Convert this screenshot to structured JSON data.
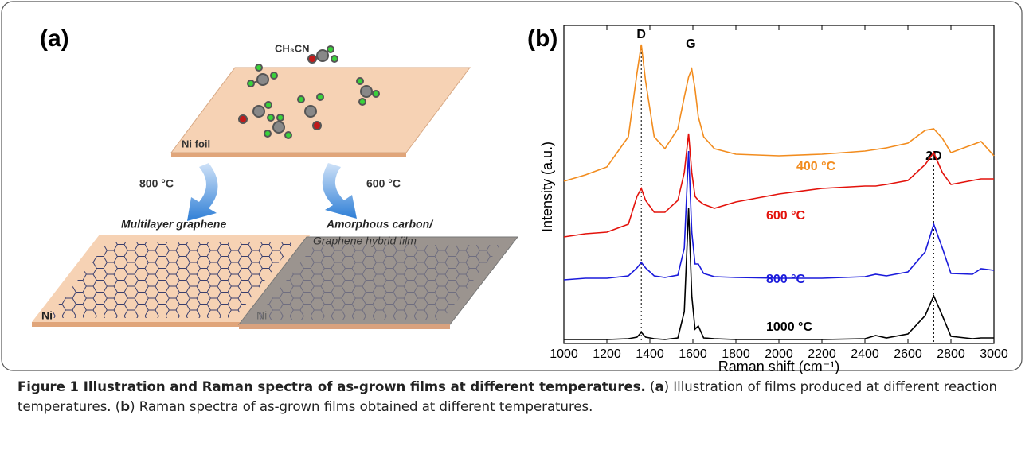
{
  "panel_a": {
    "label": "(a)",
    "molecule": "CH₃CN",
    "top_plate": "Ni foil",
    "left_temp": "800 °C",
    "right_temp": "600 °C",
    "left_film": "Multilayer graphene",
    "right_film_line1": "Amorphous carbon/",
    "right_film_line2": "Graphene hybrid film",
    "left_substrate": "Ni",
    "right_substrate": "Ni"
  },
  "chart_data": {
    "type": "line",
    "panel_label": "(b)",
    "x_label": "Raman shift (cm⁻¹)",
    "y_label": "Intensity (a.u.)",
    "x": [
      1000,
      1100,
      1200,
      1300,
      1340,
      1360,
      1380,
      1420,
      1470,
      1530,
      1560,
      1580,
      1595,
      1610,
      1625,
      1650,
      1700,
      1800,
      2000,
      2200,
      2400,
      2450,
      2500,
      2600,
      2680,
      2720,
      2760,
      2800,
      2900,
      2940,
      3000
    ],
    "series": [
      {
        "name": "400 °C",
        "color": "#f28c1e",
        "values": [
          204,
          212,
          222,
          260,
          340,
          376,
          330,
          260,
          245,
          270,
          310,
          335,
          345,
          320,
          285,
          260,
          245,
          238,
          236,
          238,
          242,
          244,
          246,
          252,
          268,
          270,
          258,
          240,
          250,
          254,
          236
        ]
      },
      {
        "name": "600 °C",
        "color": "#e3120b",
        "values": [
          134,
          138,
          140,
          150,
          185,
          195,
          180,
          165,
          165,
          180,
          215,
          264,
          215,
          185,
          180,
          175,
          170,
          178,
          188,
          195,
          198,
          198,
          200,
          205,
          225,
          240,
          215,
          200,
          205,
          207,
          207
        ]
      },
      {
        "name": "800 °C",
        "color": "#1a1adb",
        "values": [
          80,
          82,
          82,
          85,
          95,
          102,
          95,
          85,
          83,
          86,
          120,
          242,
          140,
          100,
          100,
          88,
          84,
          83,
          82,
          82,
          84,
          87,
          85,
          90,
          115,
          150,
          120,
          88,
          87,
          94,
          92
        ]
      },
      {
        "name": "1000 °C",
        "color": "#000000",
        "values": [
          5,
          5,
          5,
          6,
          8,
          14,
          8,
          6,
          5,
          7,
          40,
          170,
          60,
          18,
          22,
          7,
          6,
          5,
          5,
          5,
          6,
          10,
          7,
          12,
          35,
          60,
          35,
          9,
          6,
          7,
          7
        ]
      }
    ],
    "annotations": [
      {
        "label": "D",
        "x": 1360,
        "line": true
      },
      {
        "label": "G",
        "x": 1590,
        "line": false
      },
      {
        "label": "2D",
        "x": 2720,
        "line": true
      }
    ],
    "xlim": [
      1000,
      3000
    ],
    "xticks": [
      1000,
      1200,
      1400,
      1600,
      1800,
      2000,
      2200,
      2400,
      2600,
      2800,
      3000
    ],
    "ylim": [
      0,
      400
    ]
  },
  "caption": {
    "title": "Figure 1 Illustration and Raman spectra of as-grown films at different temperatures.",
    "segments": [
      " (",
      "a",
      ") Illustration of films produced at different reaction temperatures. (",
      "b",
      ") Raman spectra of as-grown films obtained at different temperatures."
    ]
  }
}
